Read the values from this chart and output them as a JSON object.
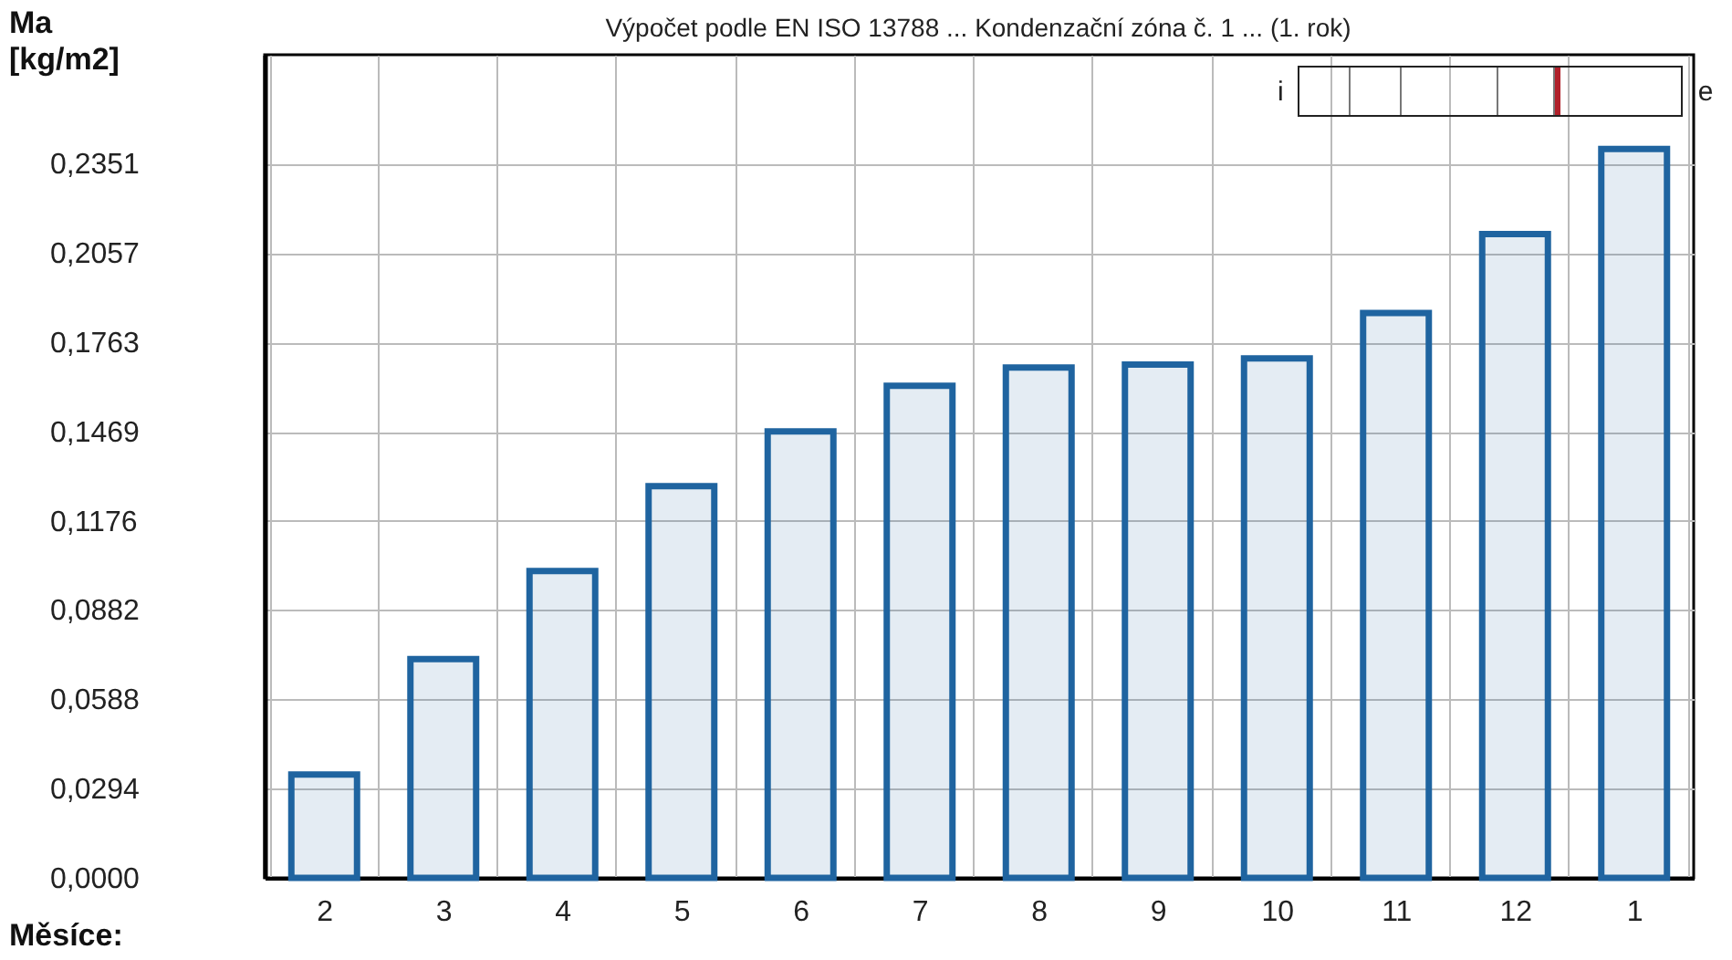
{
  "chart_data": {
    "type": "bar",
    "title": "Výpočet podle EN ISO 13788 ... Kondenzační zóna č. 1 ... (1. rok)",
    "xlabel": "Měsíce:",
    "ylabel": "Ma [kg/m2]",
    "categories": [
      "2",
      "3",
      "4",
      "5",
      "6",
      "7",
      "8",
      "9",
      "10",
      "11",
      "12",
      "1"
    ],
    "values": [
      0.034,
      0.072,
      0.101,
      0.129,
      0.147,
      0.162,
      0.168,
      0.169,
      0.171,
      0.186,
      0.212,
      0.24
    ],
    "color": "#1f64a0",
    "ylim": [
      0,
      0.271
    ],
    "yticks": [
      {
        "value": 0,
        "label": "0,0000"
      },
      {
        "value": 0.0294,
        "label": "0,0294"
      },
      {
        "value": 0.0588,
        "label": "0,0588"
      },
      {
        "value": 0.0882,
        "label": "0,0882"
      },
      {
        "value": 0.1176,
        "label": "0,1176"
      },
      {
        "value": 0.1469,
        "label": "0,1469"
      },
      {
        "value": 0.1763,
        "label": "0,1763"
      },
      {
        "value": 0.2057,
        "label": "0,2057"
      },
      {
        "value": 0.2351,
        "label": "0,2351"
      }
    ],
    "grid": true,
    "annotations": [
      "i",
      "e"
    ]
  }
}
